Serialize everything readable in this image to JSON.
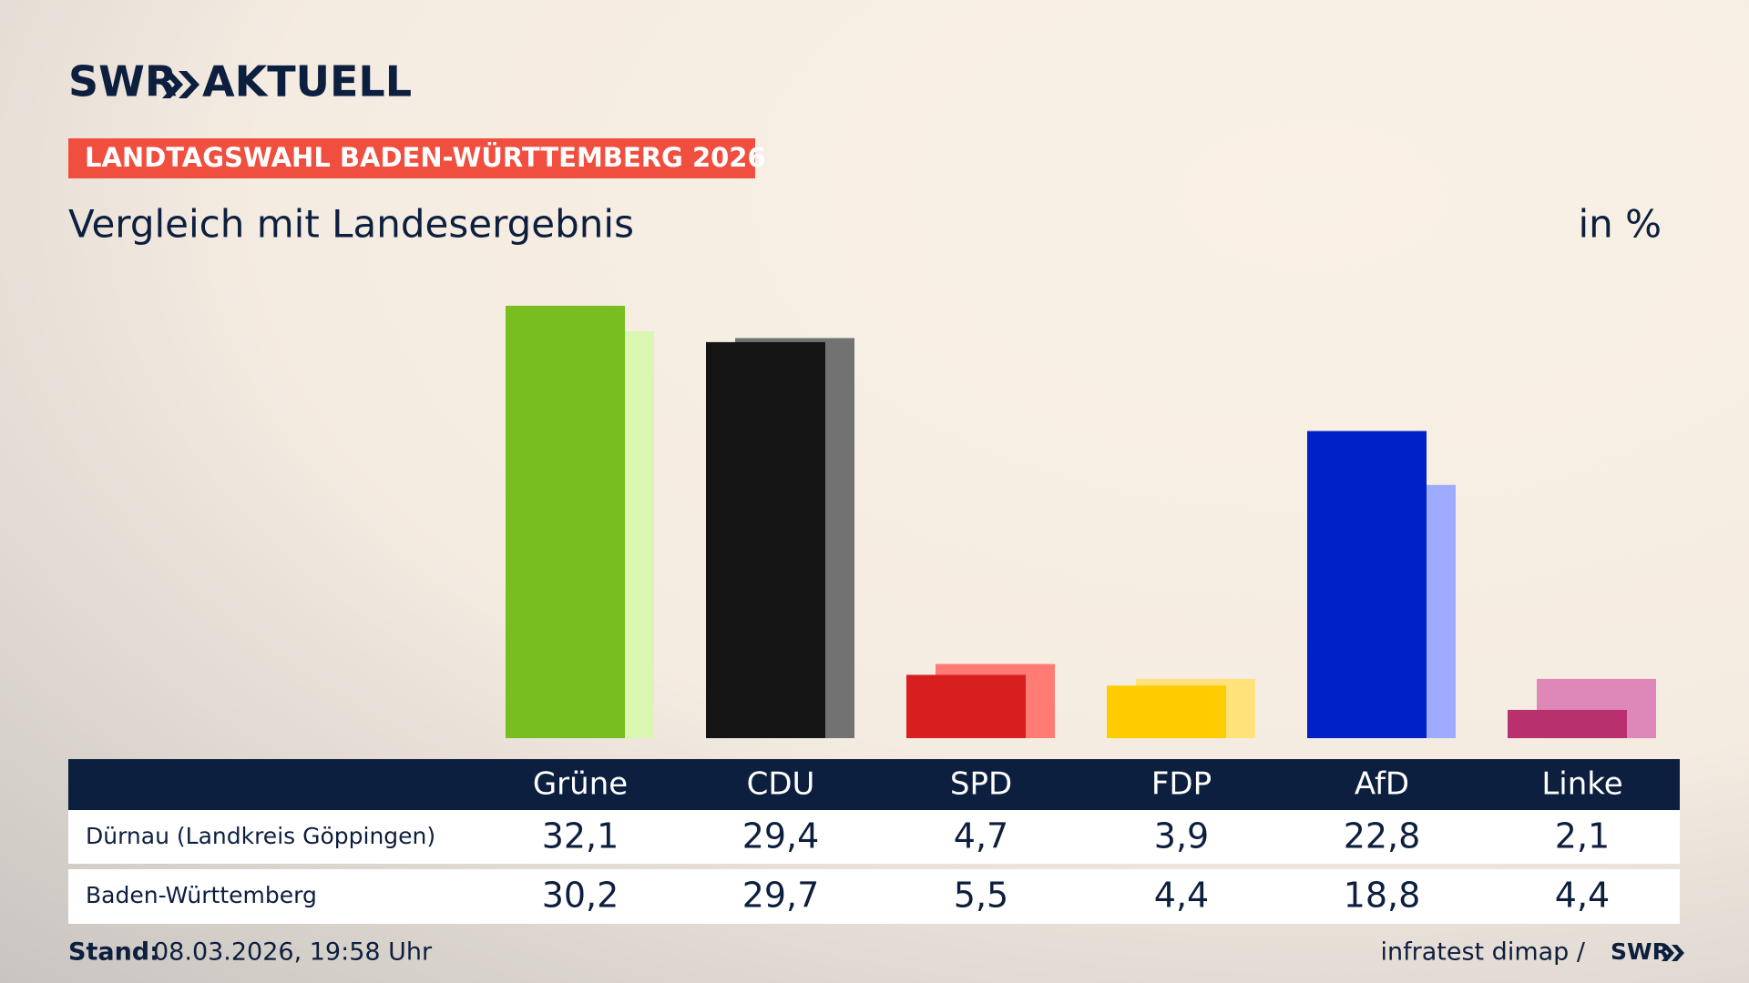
{
  "brand": "SWR",
  "brand_suffix": "AKTUELL",
  "banner": "LANDTAGSWAHL BADEN-WÜRTTEMBERG 2026",
  "chart_data": {
    "type": "bar",
    "title": "Vergleich mit Landesergebnis",
    "unit": "in %",
    "categories": [
      "Grüne",
      "CDU",
      "SPD",
      "FDP",
      "AfD",
      "Linke"
    ],
    "series": [
      {
        "name": "Dürnau (Landkreis Göppingen)",
        "colors": [
          "#78be1e",
          "#141414",
          "#d81f1f",
          "#ffcc00",
          "#0020c8",
          "#b8306e"
        ],
        "values": [
          32.1,
          29.4,
          4.7,
          3.9,
          22.8,
          2.1
        ],
        "value_labels": [
          "32,1",
          "29,4",
          "4,7",
          "3,9",
          "22,8",
          "2,1"
        ]
      },
      {
        "name": "Baden-Württemberg",
        "colors": [
          "#d9f7b0",
          "#727272",
          "#ff7b73",
          "#ffe27a",
          "#9eacff",
          "#dd88b8"
        ],
        "values": [
          30.2,
          29.7,
          5.5,
          4.4,
          18.8,
          4.4
        ],
        "value_labels": [
          "30,2",
          "29,7",
          "5,5",
          "4,4",
          "18,8",
          "4,4"
        ]
      }
    ]
  },
  "footer": {
    "stand_label": "Stand:",
    "stand": "08.03.2026, 19:58 Uhr",
    "source": "infratest dimap /",
    "source_brand": "SWR"
  }
}
